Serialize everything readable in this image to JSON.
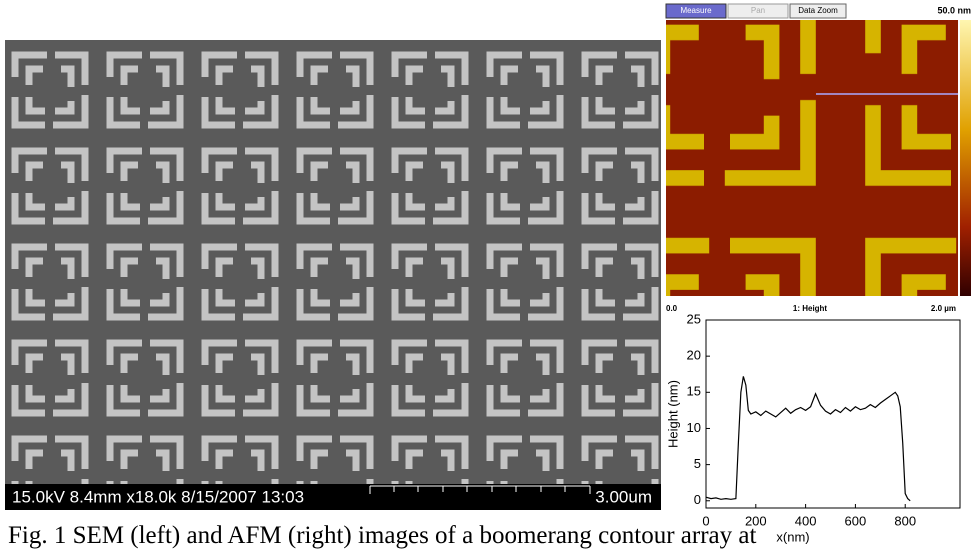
{
  "sem": {
    "info": "15.0kV 8.4mm x18.0k 8/15/2007 13:03",
    "scale": "3.00um"
  },
  "afm": {
    "buttons": [
      "Measure",
      "Pan",
      "Data Zoom"
    ],
    "range": "50.0 nm",
    "x_start": "0.0",
    "channel": "1: Height",
    "x_end": "2.0 µm"
  },
  "chart_data": {
    "type": "line",
    "xlabel": "x(nm)",
    "ylabel": "Height (nm)",
    "x": [
      0,
      20,
      40,
      60,
      80,
      100,
      120,
      130,
      140,
      150,
      160,
      170,
      180,
      200,
      220,
      240,
      260,
      280,
      300,
      320,
      340,
      360,
      380,
      400,
      420,
      440,
      460,
      480,
      500,
      520,
      540,
      560,
      580,
      600,
      620,
      640,
      660,
      680,
      700,
      720,
      740,
      760,
      770,
      780,
      790,
      800,
      810,
      820
    ],
    "series": [
      {
        "color": "#000000",
        "values": [
          0.5,
          0.3,
          0.4,
          0.2,
          0.3,
          0.2,
          0.3,
          8,
          15,
          17.2,
          16,
          12.5,
          12,
          12.3,
          11.8,
          12.4,
          12,
          11.6,
          12.2,
          12.8,
          12.1,
          12.6,
          12.9,
          12.5,
          13,
          14.8,
          13.2,
          12.4,
          12,
          12.6,
          12.2,
          12.9,
          12.4,
          13,
          12.6,
          12.8,
          13.3,
          12.9,
          13.5,
          14,
          14.5,
          15,
          14.5,
          13,
          8,
          1,
          0.3,
          0
        ]
      }
    ],
    "xlim": [
      0,
      1020
    ],
    "ylim": [
      -1,
      25
    ],
    "xticks": [
      0,
      200,
      400,
      600,
      800
    ],
    "yticks": [
      0,
      5,
      10,
      15,
      20,
      25
    ]
  },
  "caption": "Fig. 1 SEM (left) and AFM (right) images of a boomerang contour array at"
}
